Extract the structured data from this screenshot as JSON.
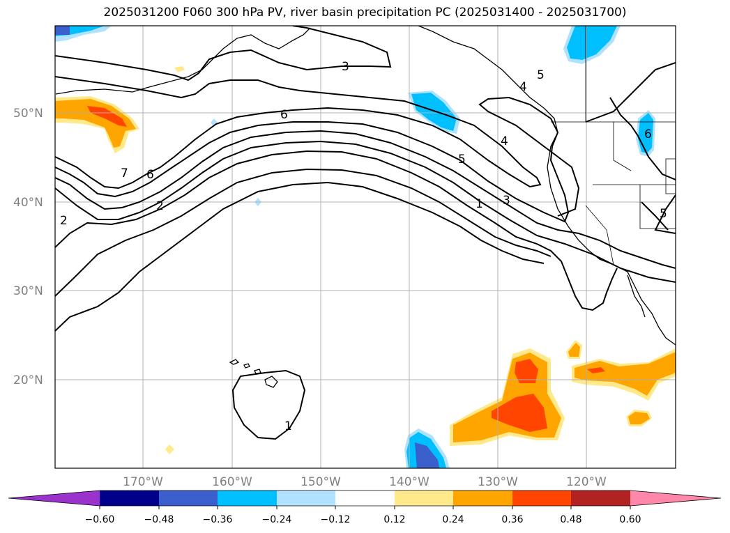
{
  "title": "2025031200 F060 300 hPa PV, river basin precipitation PC (2025031400 - 2025031700)",
  "lat_labels": [
    "50°N",
    "40°N",
    "30°N",
    "20°N"
  ],
  "lon_labels": [
    "170°W",
    "160°W",
    "150°W",
    "140°W",
    "130°W",
    "120°W"
  ],
  "contour_labels": [
    "3",
    "5",
    "4",
    "6",
    "6",
    "4",
    "5",
    "7",
    "6",
    "2",
    "2",
    "1",
    "3",
    "5",
    "1"
  ],
  "colorbar": {
    "ticks": [
      "−0.60",
      "−0.48",
      "−0.36",
      "−0.24",
      "−0.12",
      "0.12",
      "0.24",
      "0.36",
      "0.48",
      "0.60"
    ],
    "colors": [
      "#9933cc",
      "#00008b",
      "#3a5fcd",
      "#00bfff",
      "#b0e2ff",
      "#ffffff",
      "#ffe98a",
      "#ffa500",
      "#ff4500",
      "#b22222",
      "#ff88aa"
    ]
  },
  "colors": {
    "neg_light": "#b0e2ff",
    "neg_mid": "#00bfff",
    "neg_dark": "#3a5fcd",
    "pos_light": "#ffe98a",
    "pos_mid": "#ffa500",
    "pos_dark": "#ff4500",
    "grid": "#b0b0b0"
  }
}
